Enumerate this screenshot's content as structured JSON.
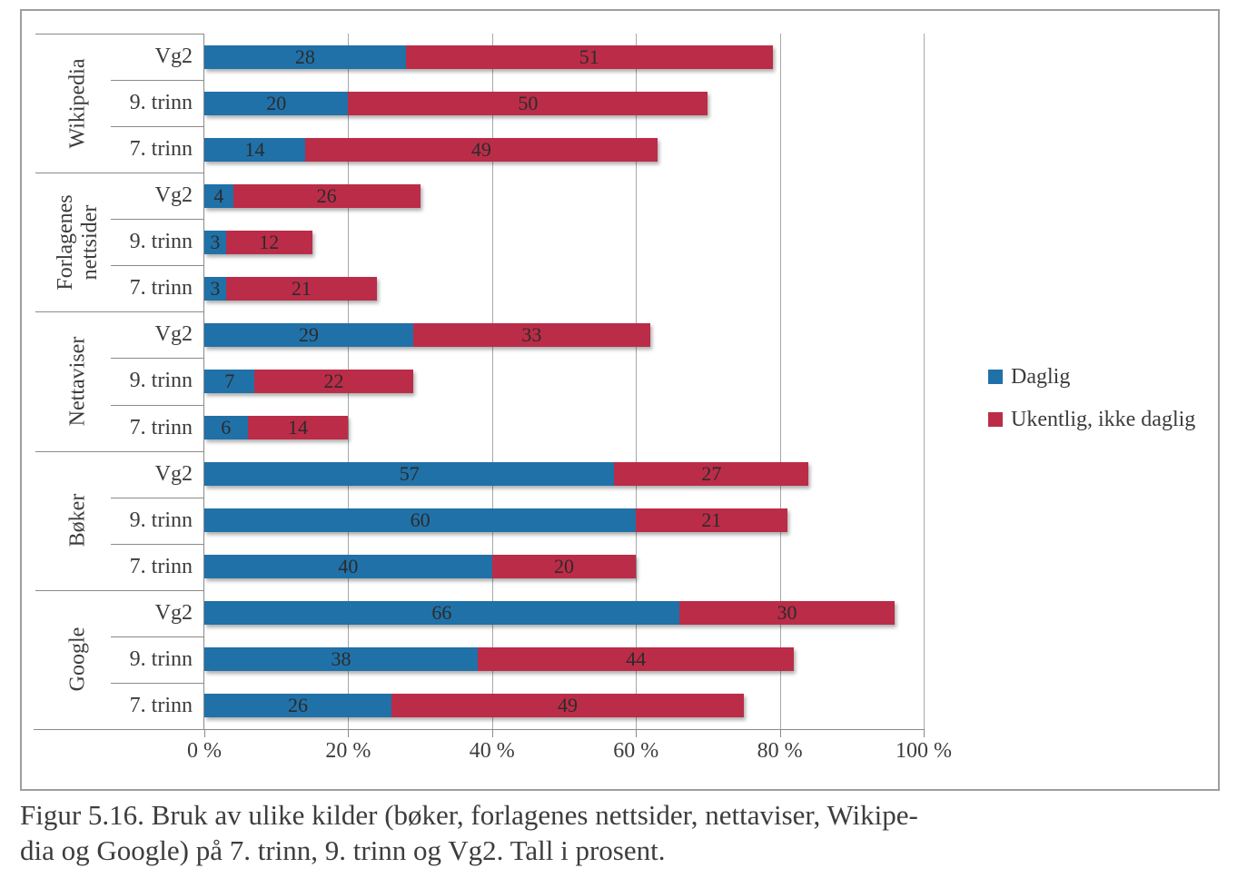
{
  "caption": {
    "lines": [
      "Figur 5.16. Bruk av ulike kilder (bøker, forlagenes nettsider, nettaviser, Wikipe-",
      "dia og Google) på 7. trinn, 9. trinn og Vg2. Tall i prosent."
    ]
  },
  "colors": {
    "daglig": "#2071A8",
    "ukentlig": "#BB2C48",
    "grid": "#A8A8A8",
    "axis": "#8A8A8A",
    "frame_border": "#9E9E9E",
    "value_text": "#2B2B2B",
    "label_text": "#3C3C3C"
  },
  "chart_data": {
    "type": "bar",
    "orientation": "horizontal",
    "stacked": true,
    "grid": true,
    "legend_position": "right",
    "xlim": [
      0,
      100
    ],
    "x_ticks": [
      "0 %",
      "20 %",
      "40 %",
      "60 %",
      "80 %",
      "100 %"
    ],
    "x_tick_values": [
      0,
      20,
      40,
      60,
      80,
      100
    ],
    "series": [
      {
        "name": "Daglig",
        "color": "#2071A8"
      },
      {
        "name": "Ukentlig, ikke daglig",
        "color": "#BB2C48"
      }
    ],
    "groups": [
      {
        "label": "Wikipedia",
        "rows": [
          {
            "label": "Vg2",
            "values": [
              28,
              51
            ]
          },
          {
            "label": "9. trinn",
            "values": [
              20,
              50
            ]
          },
          {
            "label": "7. trinn",
            "values": [
              14,
              49
            ]
          }
        ]
      },
      {
        "label": "Forlagenes\nnettsider",
        "rows": [
          {
            "label": "Vg2",
            "values": [
              4,
              26
            ]
          },
          {
            "label": "9. trinn",
            "values": [
              3,
              12
            ]
          },
          {
            "label": "7. trinn",
            "values": [
              3,
              21
            ]
          }
        ]
      },
      {
        "label": "Nettaviser",
        "rows": [
          {
            "label": "Vg2",
            "values": [
              29,
              33
            ]
          },
          {
            "label": "9. trinn",
            "values": [
              7,
              22
            ]
          },
          {
            "label": "7. trinn",
            "values": [
              6,
              14
            ]
          }
        ]
      },
      {
        "label": "Bøker",
        "rows": [
          {
            "label": "Vg2",
            "values": [
              57,
              27
            ]
          },
          {
            "label": "9. trinn",
            "values": [
              60,
              21
            ]
          },
          {
            "label": "7. trinn",
            "values": [
              40,
              20
            ]
          }
        ]
      },
      {
        "label": "Google",
        "rows": [
          {
            "label": "Vg2",
            "values": [
              66,
              30
            ]
          },
          {
            "label": "9. trinn",
            "values": [
              38,
              44
            ]
          },
          {
            "label": "7. trinn",
            "values": [
              26,
              49
            ]
          }
        ]
      }
    ]
  }
}
